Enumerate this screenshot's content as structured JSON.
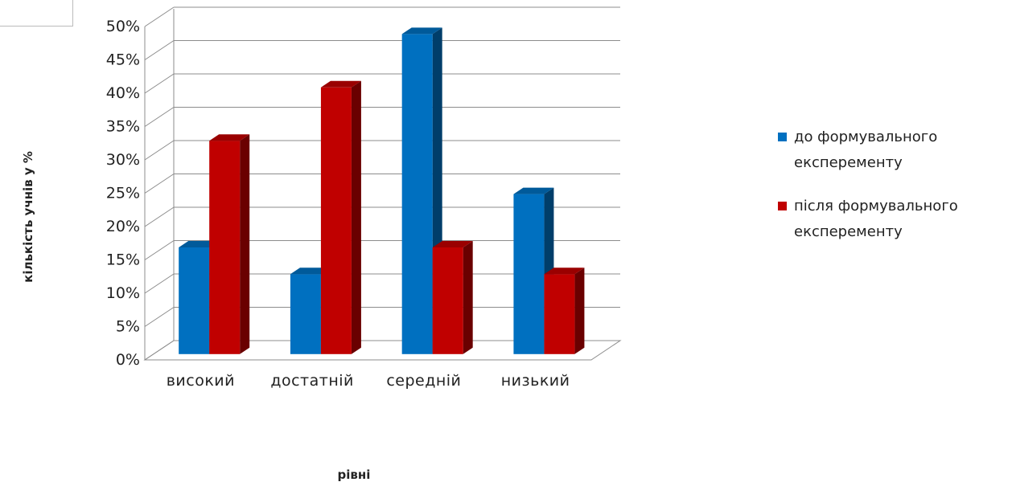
{
  "chart_data": {
    "type": "bar",
    "categories": [
      "високий",
      "достатній",
      "середній",
      "низький"
    ],
    "series": [
      {
        "name": "до формувального експеременту",
        "values": [
          16,
          12,
          48,
          24
        ],
        "color": "#0070C0"
      },
      {
        "name": "після формувального експеременту",
        "values": [
          32,
          40,
          16,
          12
        ],
        "color": "#C00000"
      }
    ],
    "y_ticks": [
      "0%",
      "5%",
      "10%",
      "15%",
      "20%",
      "25%",
      "30%",
      "35%",
      "40%",
      "45%",
      "50%"
    ],
    "ylim": [
      0,
      50
    ],
    "xlabel": "рівні",
    "ylabel": "кількість учнів у %",
    "grid": true,
    "legend_position": "right",
    "style": "3d-clustered-column"
  },
  "legend": {
    "items": [
      {
        "line1": "до формувального",
        "line2": "експеременту",
        "color": "#0070C0"
      },
      {
        "line1": "після формувального",
        "line2": "експеременту",
        "color": "#C00000"
      }
    ]
  }
}
